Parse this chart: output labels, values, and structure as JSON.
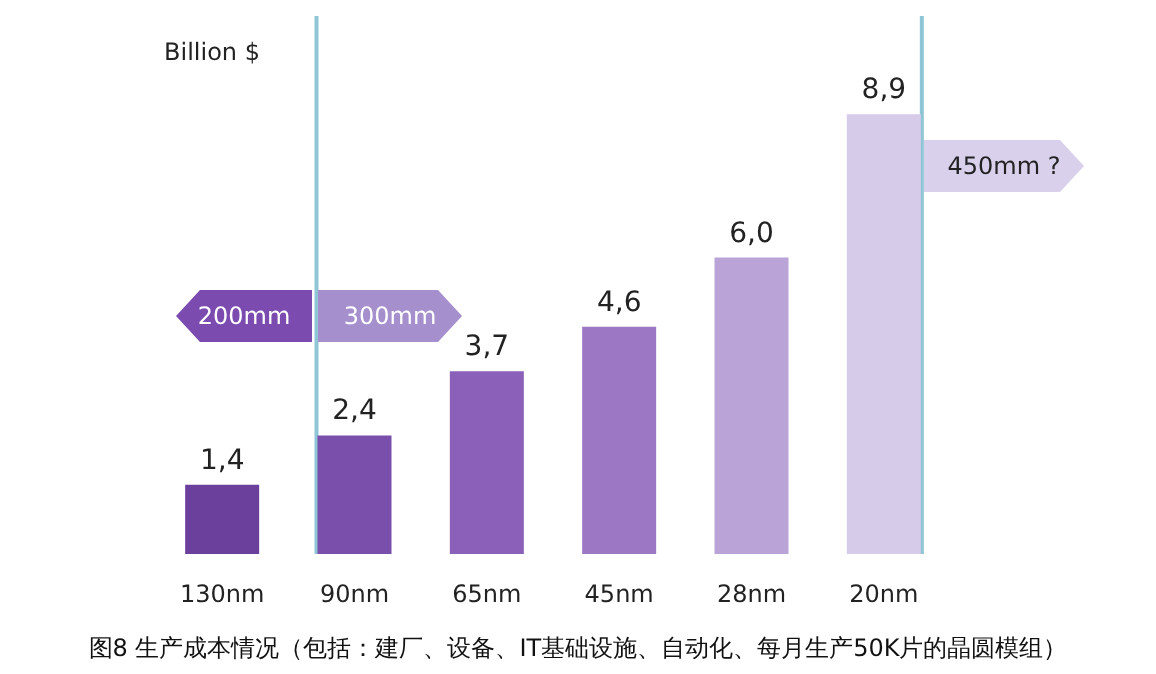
{
  "chart_data": {
    "type": "bar",
    "ylabel": "Billion $",
    "title": "图8 生产成本情况（包括：建厂、设备、IT基础设施、自动化、每月生产50K片的晶圆模组）",
    "categories": [
      "130nm",
      "90nm",
      "65nm",
      "45nm",
      "28nm",
      "20nm"
    ],
    "values": [
      1.4,
      2.4,
      3.7,
      4.6,
      6.0,
      8.9
    ],
    "value_labels": [
      "1,4",
      "2,4",
      "3,7",
      "4,6",
      "6,0",
      "8,9"
    ],
    "colors": [
      "#6b3f9c",
      "#7a4eab",
      "#8b60b8",
      "#9c78c4",
      "#baa3d7",
      "#d6cbe8"
    ],
    "tick_labels": "x",
    "ref_lines": [
      {
        "axis": "x",
        "value": "90nm",
        "color": "#8fc6d6"
      },
      {
        "axis": "x",
        "value": "20nm",
        "color": "#8fc6d6"
      }
    ],
    "annotations": [
      "200mm",
      "300mm",
      "450mm ?"
    ]
  }
}
